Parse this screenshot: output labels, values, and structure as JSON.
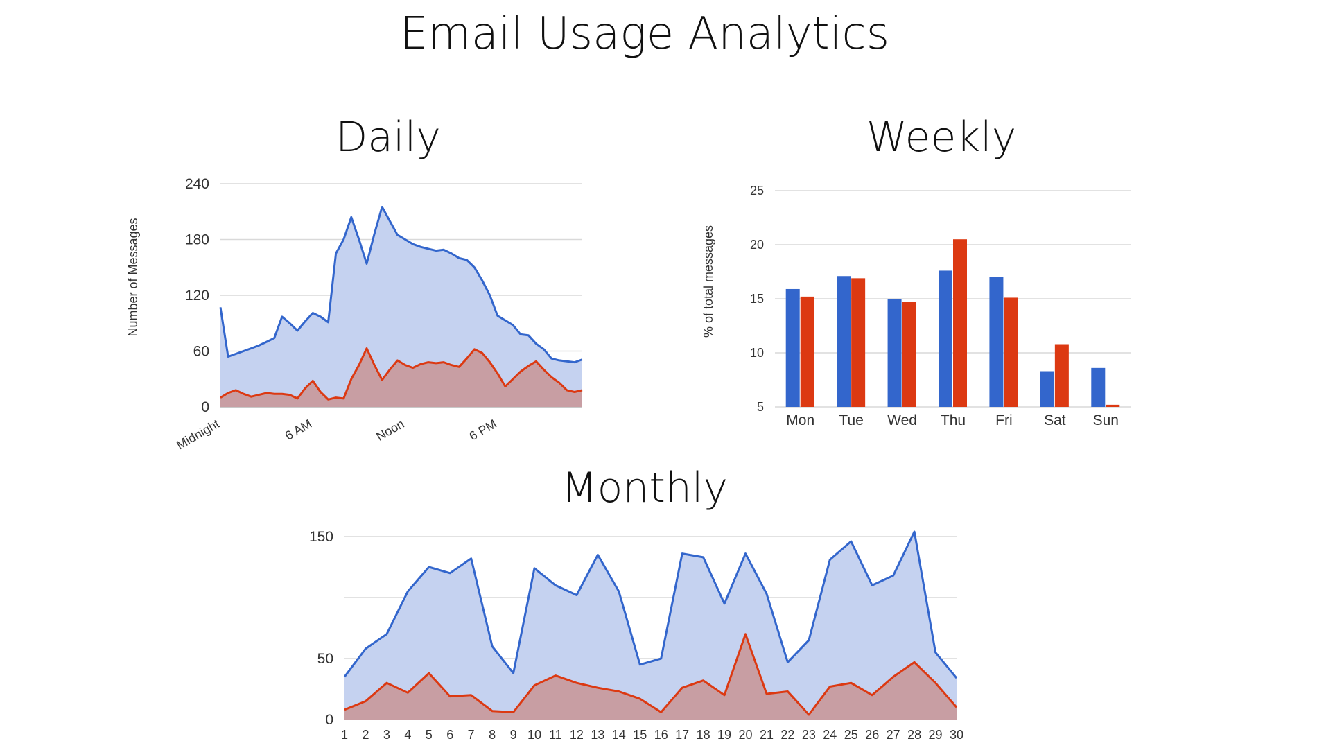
{
  "title": "Email Usage Analytics",
  "colors": {
    "received": "#3366cc",
    "sent": "#dc3912",
    "received_fill": "#c5d2f0",
    "sent_fill": "#c89b9e",
    "grid": "#d9d9d9"
  },
  "chart_data": [
    {
      "id": "daily",
      "type": "area",
      "title": "Daily",
      "ylabel": "Number of Messages",
      "xlabel": "",
      "ylim": [
        0,
        240
      ],
      "yticks": [
        0,
        60,
        120,
        180,
        240
      ],
      "xtick_labels": [
        "Midnight",
        "6 AM",
        "Noon",
        "6 PM"
      ],
      "xtick_indices": [
        0,
        12,
        24,
        36
      ],
      "x": [
        0,
        1,
        2,
        3,
        4,
        5,
        6,
        7,
        8,
        9,
        10,
        11,
        12,
        13,
        14,
        15,
        16,
        17,
        18,
        19,
        20,
        21,
        22,
        23,
        24,
        25,
        26,
        27,
        28,
        29,
        30,
        31,
        32,
        33,
        34,
        35,
        36,
        37,
        38,
        39,
        40,
        41,
        42,
        43,
        44,
        45,
        46,
        47
      ],
      "series": [
        {
          "values": [
            107,
            54,
            57,
            60,
            63,
            66,
            70,
            74,
            97,
            90,
            82,
            92,
            101,
            97,
            91,
            165,
            180,
            204,
            180,
            154,
            186,
            215,
            200,
            185,
            180,
            175,
            172,
            170,
            168,
            169,
            165,
            160,
            158,
            150,
            136,
            120,
            98,
            93,
            88,
            78,
            77,
            68,
            62,
            52,
            50,
            49,
            48,
            51
          ]
        },
        {
          "values": [
            10,
            15,
            18,
            14,
            11,
            13,
            15,
            14,
            14,
            13,
            9,
            20,
            28,
            16,
            8,
            10,
            9,
            30,
            45,
            63,
            45,
            29,
            40,
            50,
            45,
            42,
            46,
            48,
            47,
            48,
            45,
            43,
            52,
            62,
            58,
            48,
            36,
            22,
            30,
            38,
            44,
            49,
            40,
            32,
            26,
            18,
            16,
            18
          ]
        }
      ]
    },
    {
      "id": "weekly",
      "type": "bar",
      "title": "Weekly",
      "ylabel": "% of total messages",
      "xlabel": "",
      "ylim": [
        5,
        25
      ],
      "yticks": [
        5,
        10,
        15,
        20,
        25
      ],
      "categories": [
        "Mon",
        "Tue",
        "Wed",
        "Thu",
        "Fri",
        "Sat",
        "Sun"
      ],
      "series": [
        {
          "values": [
            15.9,
            17.1,
            15.0,
            17.6,
            17.0,
            8.3,
            8.6
          ]
        },
        {
          "values": [
            15.2,
            16.9,
            14.7,
            20.5,
            15.1,
            10.8,
            5.2
          ]
        }
      ]
    },
    {
      "id": "monthly",
      "type": "area",
      "title": "Monthly",
      "ylabel": "",
      "xlabel": "",
      "ylim": [
        0,
        150
      ],
      "yticks": [
        0,
        50,
        100,
        150
      ],
      "ytick_labels": [
        "0",
        "50",
        "",
        "150"
      ],
      "categories": [
        "1",
        "2",
        "3",
        "4",
        "5",
        "6",
        "7",
        "8",
        "9",
        "10",
        "11",
        "12",
        "13",
        "14",
        "15",
        "16",
        "17",
        "18",
        "19",
        "20",
        "21",
        "22",
        "23",
        "24",
        "25",
        "26",
        "27",
        "28",
        "29",
        "30"
      ],
      "series": [
        {
          "values": [
            35,
            58,
            70,
            105,
            125,
            120,
            132,
            60,
            38,
            124,
            110,
            102,
            135,
            105,
            45,
            50,
            136,
            133,
            95,
            136,
            103,
            47,
            65,
            131,
            146,
            110,
            118,
            154,
            55,
            34
          ]
        },
        {
          "values": [
            8,
            15,
            30,
            22,
            38,
            19,
            20,
            7,
            6,
            28,
            36,
            30,
            26,
            23,
            17,
            6,
            26,
            32,
            20,
            70,
            21,
            23,
            4,
            27,
            30,
            20,
            35,
            47,
            30,
            10
          ]
        }
      ]
    }
  ]
}
